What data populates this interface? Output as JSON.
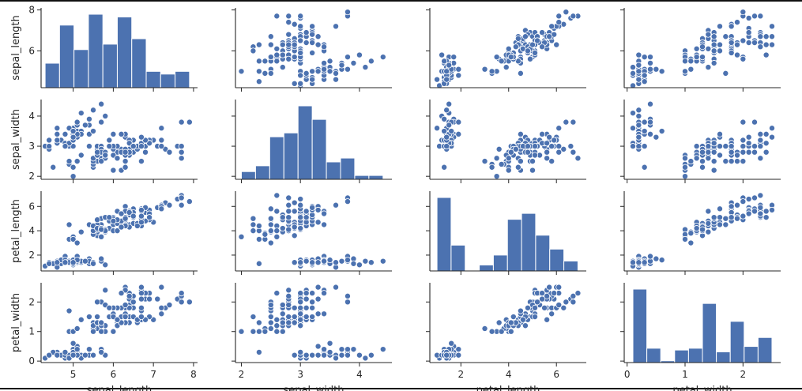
{
  "chart_data": {
    "type": "scatter",
    "subtype": "pairplot",
    "color": "#4c72b0",
    "marker_edge": "#ffffff",
    "variables": [
      "sepal_length",
      "sepal_width",
      "petal_length",
      "petal_width"
    ],
    "axes": {
      "sepal_length": {
        "lim": [
          4.2,
          8.1
        ],
        "ticks": [
          5,
          6,
          7,
          8
        ],
        "row_ticks": [
          6,
          8
        ]
      },
      "sepal_width": {
        "lim": [
          1.9,
          4.55
        ],
        "ticks": [
          2,
          3,
          4
        ],
        "row_ticks": [
          2,
          3,
          4
        ]
      },
      "petal_length": {
        "lim": [
          0.7,
          7.25
        ],
        "ticks": [
          2,
          4,
          6
        ],
        "row_ticks": [
          2,
          4,
          6
        ]
      },
      "petal_width": {
        "lim": [
          -0.05,
          2.65
        ],
        "ticks": [
          0,
          1,
          2
        ],
        "row_ticks": [
          0,
          1,
          2
        ]
      }
    },
    "histograms": {
      "sepal_length": {
        "edges": [
          4.3,
          4.66,
          5.02,
          5.38,
          5.74,
          6.1,
          6.46,
          6.82,
          7.18,
          7.54,
          7.9
        ],
        "counts": [
          9,
          23,
          14,
          27,
          16,
          26,
          18,
          6,
          5,
          6
        ]
      },
      "sepal_width": {
        "edges": [
          2.0,
          2.24,
          2.48,
          2.72,
          2.96,
          3.2,
          3.44,
          3.68,
          3.92,
          4.16,
          4.4
        ],
        "counts": [
          4,
          7,
          22,
          24,
          38,
          31,
          9,
          11,
          2,
          2
        ]
      },
      "petal_length": {
        "edges": [
          1.0,
          1.59,
          2.18,
          2.77,
          3.36,
          3.95,
          4.54,
          5.13,
          5.72,
          6.31,
          6.9
        ],
        "counts": [
          37,
          13,
          0,
          3,
          8,
          26,
          29,
          18,
          11,
          5
        ]
      },
      "petal_width": {
        "edges": [
          0.1,
          0.34,
          0.58,
          0.82,
          1.06,
          1.3,
          1.54,
          1.78,
          2.02,
          2.26,
          2.5
        ],
        "counts": [
          41,
          8,
          1,
          7,
          8,
          33,
          6,
          23,
          9,
          14
        ]
      }
    },
    "points": [
      [
        5.1,
        3.5,
        1.4,
        0.2
      ],
      [
        4.9,
        3.0,
        1.4,
        0.2
      ],
      [
        4.7,
        3.2,
        1.3,
        0.2
      ],
      [
        4.6,
        3.1,
        1.5,
        0.2
      ],
      [
        5.0,
        3.6,
        1.4,
        0.2
      ],
      [
        5.4,
        3.9,
        1.7,
        0.4
      ],
      [
        4.6,
        3.4,
        1.4,
        0.3
      ],
      [
        5.0,
        3.4,
        1.5,
        0.2
      ],
      [
        4.4,
        2.9,
        1.4,
        0.2
      ],
      [
        4.9,
        3.1,
        1.5,
        0.1
      ],
      [
        5.4,
        3.7,
        1.5,
        0.2
      ],
      [
        4.8,
        3.4,
        1.6,
        0.2
      ],
      [
        4.8,
        3.0,
        1.4,
        0.1
      ],
      [
        4.3,
        3.0,
        1.1,
        0.1
      ],
      [
        5.8,
        4.0,
        1.2,
        0.2
      ],
      [
        5.7,
        4.4,
        1.5,
        0.4
      ],
      [
        5.4,
        3.9,
        1.3,
        0.4
      ],
      [
        5.1,
        3.5,
        1.4,
        0.3
      ],
      [
        5.7,
        3.8,
        1.7,
        0.3
      ],
      [
        5.1,
        3.8,
        1.5,
        0.3
      ],
      [
        5.4,
        3.4,
        1.7,
        0.2
      ],
      [
        5.1,
        3.7,
        1.5,
        0.4
      ],
      [
        4.6,
        3.6,
        1.0,
        0.2
      ],
      [
        5.1,
        3.3,
        1.7,
        0.5
      ],
      [
        4.8,
        3.4,
        1.9,
        0.2
      ],
      [
        5.0,
        3.0,
        1.6,
        0.2
      ],
      [
        5.0,
        3.4,
        1.6,
        0.4
      ],
      [
        5.2,
        3.5,
        1.5,
        0.2
      ],
      [
        5.2,
        3.4,
        1.4,
        0.2
      ],
      [
        4.7,
        3.2,
        1.6,
        0.2
      ],
      [
        4.8,
        3.1,
        1.6,
        0.2
      ],
      [
        5.4,
        3.4,
        1.5,
        0.4
      ],
      [
        5.2,
        4.1,
        1.5,
        0.1
      ],
      [
        5.5,
        4.2,
        1.4,
        0.2
      ],
      [
        4.9,
        3.1,
        1.5,
        0.2
      ],
      [
        5.0,
        3.2,
        1.2,
        0.2
      ],
      [
        5.5,
        3.5,
        1.3,
        0.2
      ],
      [
        4.9,
        3.6,
        1.4,
        0.1
      ],
      [
        4.4,
        3.0,
        1.3,
        0.2
      ],
      [
        5.1,
        3.4,
        1.5,
        0.2
      ],
      [
        5.0,
        3.5,
        1.3,
        0.3
      ],
      [
        4.5,
        2.3,
        1.3,
        0.3
      ],
      [
        4.4,
        3.2,
        1.3,
        0.2
      ],
      [
        5.0,
        3.5,
        1.6,
        0.6
      ],
      [
        5.1,
        3.8,
        1.9,
        0.4
      ],
      [
        4.8,
        3.0,
        1.4,
        0.3
      ],
      [
        5.1,
        3.8,
        1.6,
        0.2
      ],
      [
        4.6,
        3.2,
        1.4,
        0.2
      ],
      [
        5.3,
        3.7,
        1.5,
        0.2
      ],
      [
        5.0,
        3.3,
        1.4,
        0.2
      ],
      [
        7.0,
        3.2,
        4.7,
        1.4
      ],
      [
        6.4,
        3.2,
        4.5,
        1.5
      ],
      [
        6.9,
        3.1,
        4.9,
        1.5
      ],
      [
        5.5,
        2.3,
        4.0,
        1.3
      ],
      [
        6.5,
        2.8,
        4.6,
        1.5
      ],
      [
        5.7,
        2.8,
        4.5,
        1.3
      ],
      [
        6.3,
        3.3,
        4.7,
        1.6
      ],
      [
        4.9,
        2.4,
        3.3,
        1.0
      ],
      [
        6.6,
        2.9,
        4.6,
        1.3
      ],
      [
        5.2,
        2.7,
        3.9,
        1.4
      ],
      [
        5.0,
        2.0,
        3.5,
        1.0
      ],
      [
        5.9,
        3.0,
        4.2,
        1.5
      ],
      [
        6.0,
        2.2,
        4.0,
        1.0
      ],
      [
        6.1,
        2.9,
        4.7,
        1.4
      ],
      [
        5.6,
        2.9,
        3.6,
        1.3
      ],
      [
        6.7,
        3.1,
        4.4,
        1.4
      ],
      [
        5.6,
        3.0,
        4.5,
        1.5
      ],
      [
        5.8,
        2.7,
        4.1,
        1.0
      ],
      [
        6.2,
        2.2,
        4.5,
        1.5
      ],
      [
        5.6,
        2.5,
        3.9,
        1.1
      ],
      [
        5.9,
        3.2,
        4.8,
        1.8
      ],
      [
        6.1,
        2.8,
        4.0,
        1.3
      ],
      [
        6.3,
        2.5,
        4.9,
        1.5
      ],
      [
        6.1,
        2.8,
        4.7,
        1.2
      ],
      [
        6.4,
        2.9,
        4.3,
        1.3
      ],
      [
        6.6,
        3.0,
        4.4,
        1.4
      ],
      [
        6.8,
        2.8,
        4.8,
        1.4
      ],
      [
        6.7,
        3.0,
        5.0,
        1.7
      ],
      [
        6.0,
        2.9,
        4.5,
        1.5
      ],
      [
        5.7,
        2.6,
        3.5,
        1.0
      ],
      [
        5.5,
        2.4,
        3.8,
        1.1
      ],
      [
        5.5,
        2.4,
        3.7,
        1.0
      ],
      [
        5.8,
        2.7,
        3.9,
        1.2
      ],
      [
        6.0,
        2.7,
        5.1,
        1.6
      ],
      [
        5.4,
        3.0,
        4.5,
        1.5
      ],
      [
        6.0,
        3.4,
        4.5,
        1.6
      ],
      [
        6.7,
        3.1,
        4.7,
        1.5
      ],
      [
        6.3,
        2.3,
        4.4,
        1.3
      ],
      [
        5.6,
        3.0,
        4.1,
        1.3
      ],
      [
        5.5,
        2.5,
        4.0,
        1.3
      ],
      [
        5.5,
        2.6,
        4.4,
        1.2
      ],
      [
        6.1,
        3.0,
        4.6,
        1.4
      ],
      [
        5.8,
        2.6,
        4.0,
        1.2
      ],
      [
        5.0,
        2.3,
        3.3,
        1.0
      ],
      [
        5.6,
        2.7,
        4.2,
        1.3
      ],
      [
        5.7,
        3.0,
        4.2,
        1.2
      ],
      [
        5.7,
        2.9,
        4.2,
        1.3
      ],
      [
        6.2,
        2.9,
        4.3,
        1.3
      ],
      [
        5.1,
        2.5,
        3.0,
        1.1
      ],
      [
        5.7,
        2.8,
        4.1,
        1.3
      ],
      [
        6.3,
        3.3,
        6.0,
        2.5
      ],
      [
        5.8,
        2.7,
        5.1,
        1.9
      ],
      [
        7.1,
        3.0,
        5.9,
        2.1
      ],
      [
        6.3,
        2.9,
        5.6,
        1.8
      ],
      [
        6.5,
        3.0,
        5.8,
        2.2
      ],
      [
        7.6,
        3.0,
        6.6,
        2.1
      ],
      [
        4.9,
        2.5,
        4.5,
        1.7
      ],
      [
        7.3,
        2.9,
        6.3,
        1.8
      ],
      [
        6.7,
        2.5,
        5.8,
        1.8
      ],
      [
        7.2,
        3.6,
        6.1,
        2.5
      ],
      [
        6.5,
        3.2,
        5.1,
        2.0
      ],
      [
        6.4,
        2.7,
        5.3,
        1.9
      ],
      [
        6.8,
        3.0,
        5.5,
        2.1
      ],
      [
        5.7,
        2.5,
        5.0,
        2.0
      ],
      [
        5.8,
        2.8,
        5.1,
        2.4
      ],
      [
        6.4,
        3.2,
        5.3,
        2.3
      ],
      [
        6.5,
        3.0,
        5.5,
        1.8
      ],
      [
        7.7,
        3.8,
        6.7,
        2.2
      ],
      [
        7.7,
        2.6,
        6.9,
        2.3
      ],
      [
        6.0,
        2.2,
        5.0,
        1.5
      ],
      [
        6.9,
        3.2,
        5.7,
        2.3
      ],
      [
        5.6,
        2.8,
        4.9,
        2.0
      ],
      [
        7.7,
        2.8,
        6.7,
        2.0
      ],
      [
        6.3,
        2.7,
        4.9,
        1.8
      ],
      [
        6.7,
        3.3,
        5.7,
        2.1
      ],
      [
        7.2,
        3.2,
        6.0,
        1.8
      ],
      [
        6.2,
        2.8,
        4.8,
        1.8
      ],
      [
        6.1,
        3.0,
        4.9,
        1.8
      ],
      [
        6.4,
        2.8,
        5.6,
        2.1
      ],
      [
        7.2,
        3.0,
        5.8,
        1.6
      ],
      [
        7.4,
        2.8,
        6.1,
        1.9
      ],
      [
        7.9,
        3.8,
        6.4,
        2.0
      ],
      [
        6.4,
        2.8,
        5.6,
        2.2
      ],
      [
        6.3,
        2.8,
        5.1,
        1.5
      ],
      [
        6.1,
        2.6,
        5.6,
        1.4
      ],
      [
        7.7,
        3.0,
        6.1,
        2.3
      ],
      [
        6.3,
        3.4,
        5.6,
        2.4
      ],
      [
        6.4,
        3.1,
        5.5,
        1.8
      ],
      [
        6.0,
        3.0,
        4.8,
        1.8
      ],
      [
        6.9,
        3.1,
        5.4,
        2.1
      ],
      [
        6.7,
        3.1,
        5.6,
        2.4
      ],
      [
        6.9,
        3.1,
        5.1,
        2.3
      ],
      [
        5.8,
        2.7,
        5.1,
        1.9
      ],
      [
        6.8,
        3.2,
        5.9,
        2.3
      ],
      [
        6.7,
        3.3,
        5.7,
        2.5
      ],
      [
        6.7,
        3.0,
        5.2,
        2.3
      ],
      [
        6.3,
        2.5,
        5.0,
        1.9
      ],
      [
        6.5,
        3.0,
        5.2,
        2.0
      ],
      [
        6.2,
        3.4,
        5.4,
        2.3
      ],
      [
        5.9,
        3.0,
        5.1,
        1.8
      ]
    ]
  }
}
